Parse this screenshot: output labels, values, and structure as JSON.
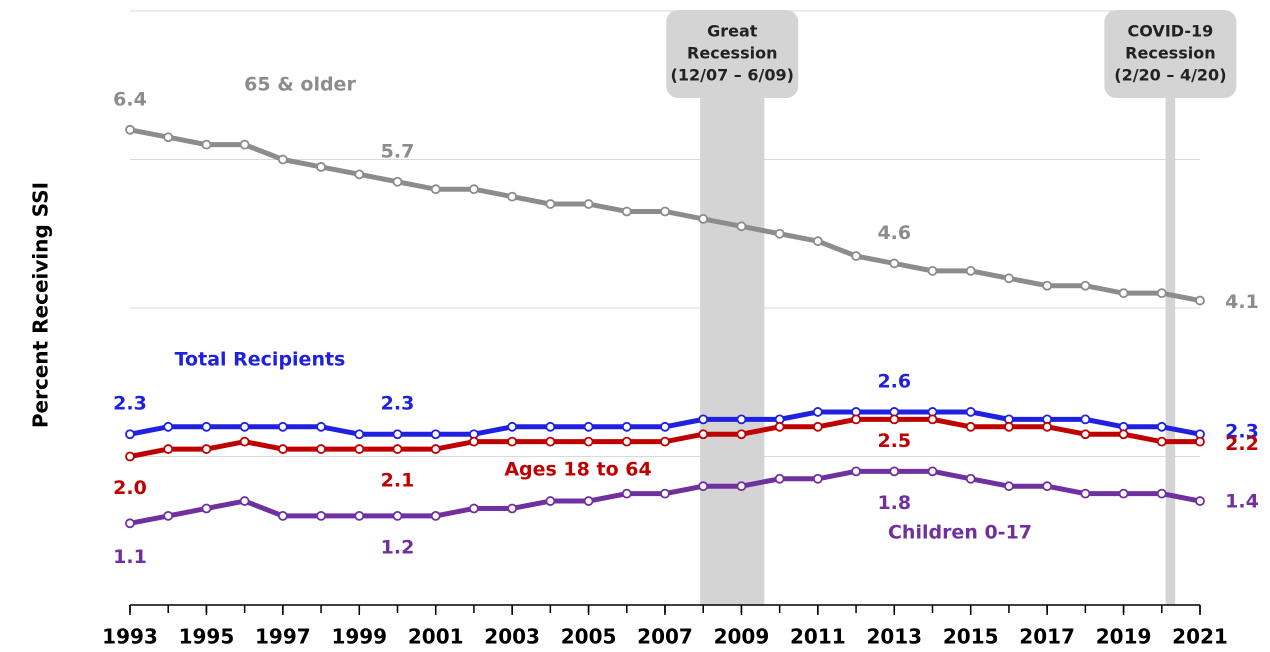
{
  "chart_data": {
    "type": "line",
    "y_label": "Percent Receiving SSI",
    "x": [
      1993,
      1994,
      1995,
      1996,
      1997,
      1998,
      1999,
      2000,
      2001,
      2002,
      2003,
      2004,
      2005,
      2006,
      2007,
      2008,
      2009,
      2010,
      2011,
      2012,
      2013,
      2014,
      2015,
      2016,
      2017,
      2018,
      2019,
      2020,
      2021
    ],
    "xlim": [
      1993,
      2021
    ],
    "xticks": [
      1993,
      1995,
      1997,
      1999,
      2001,
      2003,
      2005,
      2007,
      2009,
      2011,
      2013,
      2015,
      2017,
      2019,
      2021
    ],
    "ylim": [
      0,
      8
    ],
    "yticks": [
      0,
      2,
      4,
      6,
      8
    ],
    "grid": true,
    "series": [
      {
        "name": "65 & older",
        "color": "#8c8c8c",
        "values": [
          6.4,
          6.3,
          6.2,
          6.2,
          6.0,
          5.9,
          5.8,
          5.7,
          5.6,
          5.6,
          5.5,
          5.4,
          5.4,
          5.3,
          5.3,
          5.2,
          5.1,
          5.0,
          4.9,
          4.7,
          4.6,
          4.5,
          4.5,
          4.4,
          4.3,
          4.3,
          4.2,
          4.2,
          4.1
        ],
        "value_labels": [
          "6.4",
          null,
          null,
          null,
          null,
          null,
          null,
          "5.7",
          null,
          null,
          null,
          null,
          null,
          null,
          null,
          null,
          null,
          null,
          null,
          null,
          "4.6",
          null,
          null,
          null,
          null,
          null,
          null,
          null,
          "4.1"
        ]
      },
      {
        "name": "Total Recipients",
        "color": "#2020e0",
        "values": [
          2.3,
          2.4,
          2.4,
          2.4,
          2.4,
          2.4,
          2.3,
          2.3,
          2.3,
          2.3,
          2.4,
          2.4,
          2.4,
          2.4,
          2.4,
          2.5,
          2.5,
          2.5,
          2.6,
          2.6,
          2.6,
          2.6,
          2.6,
          2.5,
          2.5,
          2.5,
          2.4,
          2.4,
          2.3
        ],
        "value_labels": [
          "2.3",
          null,
          null,
          null,
          null,
          null,
          null,
          "2.3",
          null,
          null,
          null,
          null,
          null,
          null,
          null,
          null,
          null,
          null,
          null,
          null,
          "2.6",
          null,
          null,
          null,
          null,
          null,
          null,
          null,
          "2.3"
        ]
      },
      {
        "name": "Ages 18 to 64",
        "color": "#c00000",
        "values": [
          2.0,
          2.1,
          2.1,
          2.2,
          2.1,
          2.1,
          2.1,
          2.1,
          2.1,
          2.2,
          2.2,
          2.2,
          2.2,
          2.2,
          2.2,
          2.3,
          2.3,
          2.4,
          2.4,
          2.5,
          2.5,
          2.5,
          2.4,
          2.4,
          2.4,
          2.3,
          2.3,
          2.2,
          2.2
        ],
        "value_labels": [
          "2.0",
          null,
          null,
          null,
          null,
          null,
          null,
          "2.1",
          null,
          null,
          null,
          null,
          null,
          null,
          null,
          null,
          null,
          null,
          null,
          null,
          "2.5",
          null,
          null,
          null,
          null,
          null,
          null,
          null,
          "2.2"
        ]
      },
      {
        "name": "Children 0-17",
        "color": "#7030a0",
        "values": [
          1.1,
          1.2,
          1.3,
          1.4,
          1.2,
          1.2,
          1.2,
          1.2,
          1.2,
          1.3,
          1.3,
          1.4,
          1.4,
          1.5,
          1.5,
          1.6,
          1.6,
          1.7,
          1.7,
          1.8,
          1.8,
          1.8,
          1.7,
          1.6,
          1.6,
          1.5,
          1.5,
          1.5,
          1.4
        ],
        "value_labels": [
          "1.1",
          null,
          null,
          null,
          null,
          null,
          null,
          "1.2",
          null,
          null,
          null,
          null,
          null,
          null,
          null,
          null,
          null,
          null,
          null,
          null,
          "1.8",
          null,
          null,
          null,
          null,
          null,
          null,
          null,
          "1.4"
        ]
      }
    ],
    "recessions": [
      {
        "label": [
          "Great",
          "Recession",
          "(12/07 – 6/09)"
        ],
        "start": 2007.92,
        "end": 2009.6
      },
      {
        "label": [
          "COVID-19",
          "Recession",
          "(2/20 – 4/20)"
        ],
        "start": 2020.1,
        "end": 2020.35
      }
    ]
  }
}
